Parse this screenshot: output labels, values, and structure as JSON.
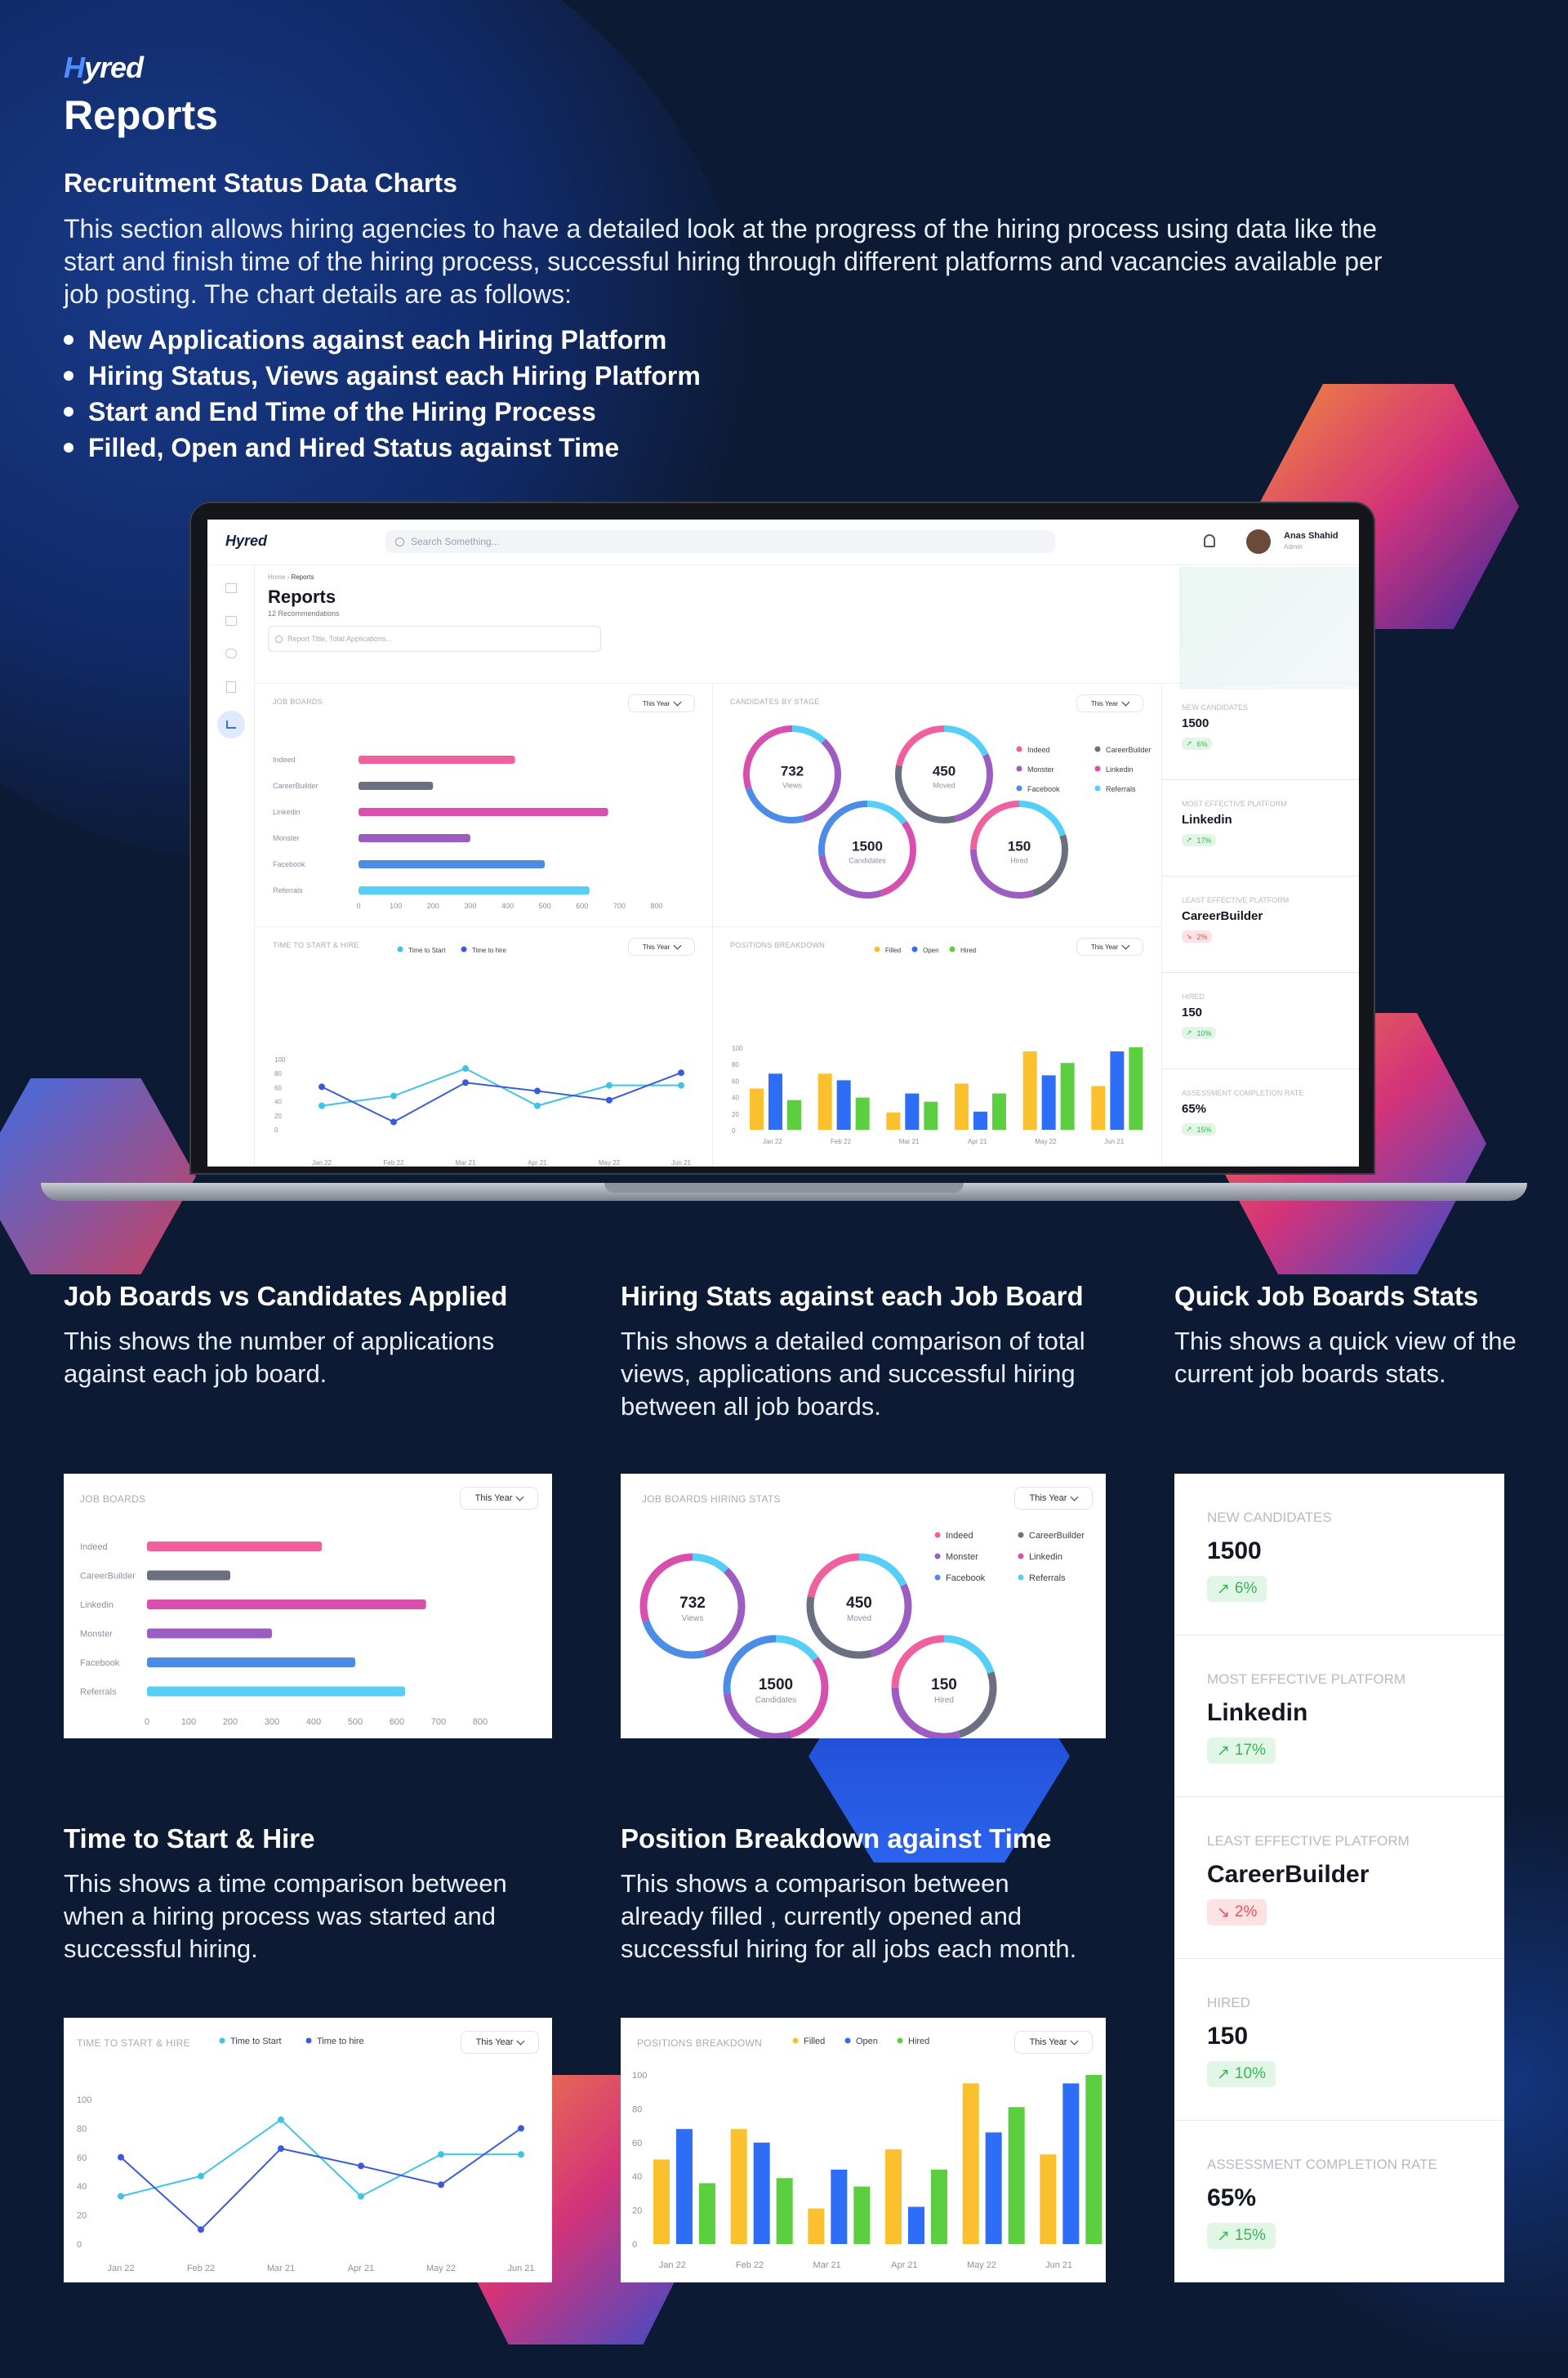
{
  "brand": {
    "logo_prefix": "H",
    "logo_rest": "yred",
    "title": "Reports"
  },
  "intro": {
    "heading": "Recruitment Status Data Charts",
    "description": "This section allows hiring agencies to have a detailed look at the progress of the hiring process using data like the start and finish time of the hiring process, successful hiring through different platforms and vacancies available per job posting.  The chart details are as follows:",
    "bullets": [
      "New Applications against each Hiring Platform",
      "Hiring Status, Views against each Hiring Platform",
      "Start and End Time of the Hiring Process",
      "Filled, Open and Hired Status against Time"
    ]
  },
  "laptop": {
    "logo": "Hyred",
    "search_placeholder": "Search Something...",
    "user_name": "Anas Shahid",
    "user_role": "Admin",
    "breadcrumb_home": "Home",
    "breadcrumb_current": "Reports",
    "page_title": "Reports",
    "page_subtitle": "12 Recommendations",
    "report_search_placeholder": "Report Title, Total Applications..."
  },
  "sections": {
    "job_boards": {
      "title": "Job Boards vs Candidates Applied",
      "desc": "This shows the number of applications against each job board."
    },
    "hiring_stats": {
      "title": "Hiring Stats against each Job Board",
      "desc": "This shows a detailed comparison of total views, applications and successful hiring between all job boards."
    },
    "quick_stats": {
      "title": "Quick Job Boards Stats",
      "desc": "This shows a quick view of the current job boards stats."
    },
    "time_hire": {
      "title": "Time to Start & Hire",
      "desc": "This shows a time comparison between when a hiring process was started and successful hiring."
    },
    "positions": {
      "title": "Position Breakdown against Time",
      "desc": "This shows a comparison between already filled , currently opened and successful hiring for all jobs each month."
    }
  },
  "year_filter": "This Year",
  "colors": {
    "indeed": "#f0609e",
    "careerbuilder": "#6c6f80",
    "linkedin": "#d94fae",
    "monster": "#9c5cc2",
    "facebook": "#4c8ce6",
    "referrals": "#55cff5",
    "filled": "#fbc02d",
    "open": "#2e6df5",
    "hired": "#5ccf40",
    "start": "#3ec3e6",
    "hire": "#3a5bd9"
  },
  "chart_data": [
    {
      "type": "bar",
      "title": "JOB BOARDS",
      "card_title_alt": "JOB BOARDS",
      "orientation": "horizontal",
      "categories": [
        "Indeed",
        "CareerBuilder",
        "Linkedin",
        "Monster",
        "Facebook",
        "Referrals"
      ],
      "values": [
        420,
        200,
        670,
        300,
        500,
        620
      ],
      "xlim": [
        0,
        800
      ],
      "xticks": [
        "0",
        "100",
        "200",
        "300",
        "400",
        "500",
        "600",
        "700",
        "800"
      ]
    },
    {
      "type": "pie",
      "title": "CANDIDATES BY STAGE",
      "title_alt": "JOB BOARDS HIRING STATS",
      "rings": [
        {
          "value": "732",
          "label": "Views"
        },
        {
          "value": "450",
          "label": "Moved"
        },
        {
          "value": "1500",
          "label": "Candidates"
        },
        {
          "value": "150",
          "label": "Hired"
        }
      ],
      "legend": [
        "Indeed",
        "CareerBuilder",
        "Monster",
        "Linkedin",
        "Facebook",
        "Referrals"
      ]
    },
    {
      "type": "line",
      "title": "TIME TO START & HIRE",
      "x": [
        "Jan 22",
        "Feb 22",
        "Mar 21",
        "Apr 21",
        "May 22",
        "Jun 21"
      ],
      "series": [
        {
          "name": "Time to Start",
          "values": [
            33,
            47,
            86,
            33,
            62,
            62
          ]
        },
        {
          "name": "Time to hire",
          "values": [
            60,
            10,
            66,
            54,
            41,
            80
          ]
        }
      ],
      "ylim": [
        0,
        100
      ],
      "yticks": [
        "0",
        "20",
        "40",
        "60",
        "80",
        "100"
      ]
    },
    {
      "type": "bar",
      "title": "POSITIONS BREAKDOWN",
      "categories": [
        "Jan 22",
        "Feb 22",
        "Mar 21",
        "Apr 21",
        "May 22",
        "Jun 21"
      ],
      "series": [
        {
          "name": "Filled",
          "values": [
            50,
            68,
            21,
            56,
            95,
            53
          ]
        },
        {
          "name": "Open",
          "values": [
            68,
            60,
            44,
            22,
            66,
            95
          ]
        },
        {
          "name": "Hired",
          "values": [
            36,
            39,
            34,
            44,
            81,
            100
          ]
        },
        {
          "name": "Filled",
          "values": [
            0,
            0,
            0,
            0,
            0,
            0
          ]
        },
        {
          "name": "Open",
          "values": [
            0,
            0,
            0,
            0,
            0,
            0
          ]
        },
        {
          "name": "Hired",
          "values": [
            0,
            0,
            0,
            0,
            0,
            0
          ]
        }
      ],
      "pairs": [
        {
          "filled": 50,
          "open": 68,
          "hired": 36
        },
        {
          "filled": 68,
          "open": 60,
          "hired": 39
        },
        {
          "filled": 21,
          "open": 44,
          "hired": 34
        },
        {
          "filled": 56,
          "open": 22,
          "hired": 44
        },
        {
          "filled": 95,
          "open": 66,
          "hired": 81
        },
        {
          "filled": 53,
          "open": 95,
          "hired": 100
        }
      ],
      "ylim": [
        0,
        100
      ],
      "yticks": [
        "0",
        "20",
        "40",
        "60",
        "80",
        "100"
      ]
    }
  ],
  "stats": [
    {
      "label": "NEW CANDIDATES",
      "value": "1500",
      "change": "6%",
      "trend": "up"
    },
    {
      "label": "MOST EFFECTIVE PLATFORM",
      "value": "Linkedin",
      "change": "17%",
      "trend": "up"
    },
    {
      "label": "LEAST EFFECTIVE PLATFORM",
      "value": "CareerBuilder",
      "change": "2%",
      "trend": "down"
    },
    {
      "label": "HIRED",
      "value": "150",
      "change": "10%",
      "trend": "up"
    },
    {
      "label": "ASSESSMENT COMPLETION RATE",
      "value": "65%",
      "change": "15%",
      "trend": "up"
    }
  ]
}
